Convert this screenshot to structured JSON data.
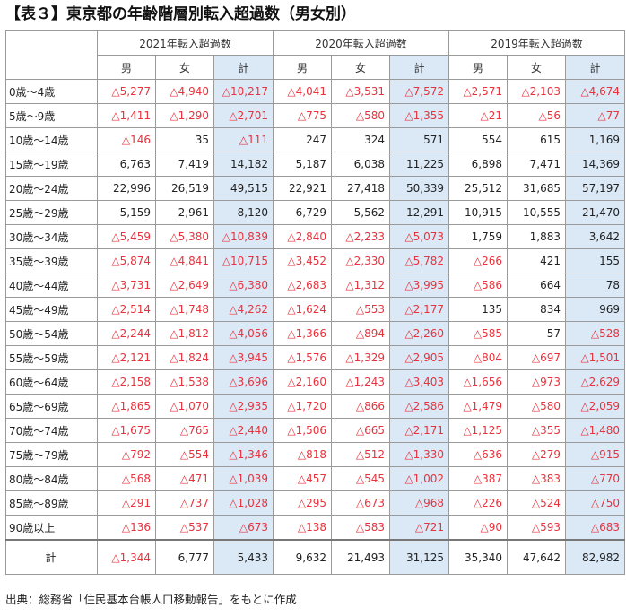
{
  "title": "【表３】東京都の年齢階層別転入超過数（男女別）",
  "header": {
    "years": [
      "2021年転入超過数",
      "2020年転入超過数",
      "2019年転入超過数"
    ],
    "sub": [
      "男",
      "女",
      "計"
    ]
  },
  "rows": [
    {
      "age": "0歳～4歳",
      "cells": [
        "△5,277",
        "△4,940",
        "△10,217",
        "△4,041",
        "△3,531",
        "△7,572",
        "△2,571",
        "△2,103",
        "△4,674"
      ]
    },
    {
      "age": "5歳～9歳",
      "cells": [
        "△1,411",
        "△1,290",
        "△2,701",
        "△775",
        "△580",
        "△1,355",
        "△21",
        "△56",
        "△77"
      ]
    },
    {
      "age": "10歳～14歳",
      "cells": [
        "△146",
        "35",
        "△111",
        "247",
        "324",
        "571",
        "554",
        "615",
        "1,169"
      ]
    },
    {
      "age": "15歳～19歳",
      "cells": [
        "6,763",
        "7,419",
        "14,182",
        "5,187",
        "6,038",
        "11,225",
        "6,898",
        "7,471",
        "14,369"
      ]
    },
    {
      "age": "20歳～24歳",
      "cells": [
        "22,996",
        "26,519",
        "49,515",
        "22,921",
        "27,418",
        "50,339",
        "25,512",
        "31,685",
        "57,197"
      ]
    },
    {
      "age": "25歳～29歳",
      "cells": [
        "5,159",
        "2,961",
        "8,120",
        "6,729",
        "5,562",
        "12,291",
        "10,915",
        "10,555",
        "21,470"
      ]
    },
    {
      "age": "30歳～34歳",
      "cells": [
        "△5,459",
        "△5,380",
        "△10,839",
        "△2,840",
        "△2,233",
        "△5,073",
        "1,759",
        "1,883",
        "3,642"
      ]
    },
    {
      "age": "35歳～39歳",
      "cells": [
        "△5,874",
        "△4,841",
        "△10,715",
        "△3,452",
        "△2,330",
        "△5,782",
        "△266",
        "421",
        "155"
      ]
    },
    {
      "age": "40歳～44歳",
      "cells": [
        "△3,731",
        "△2,649",
        "△6,380",
        "△2,683",
        "△1,312",
        "△3,995",
        "△586",
        "664",
        "78"
      ]
    },
    {
      "age": "45歳～49歳",
      "cells": [
        "△2,514",
        "△1,748",
        "△4,262",
        "△1,624",
        "△553",
        "△2,177",
        "135",
        "834",
        "969"
      ]
    },
    {
      "age": "50歳～54歳",
      "cells": [
        "△2,244",
        "△1,812",
        "△4,056",
        "△1,366",
        "△894",
        "△2,260",
        "△585",
        "57",
        "△528"
      ]
    },
    {
      "age": "55歳～59歳",
      "cells": [
        "△2,121",
        "△1,824",
        "△3,945",
        "△1,576",
        "△1,329",
        "△2,905",
        "△804",
        "△697",
        "△1,501"
      ]
    },
    {
      "age": "60歳～64歳",
      "cells": [
        "△2,158",
        "△1,538",
        "△3,696",
        "△2,160",
        "△1,243",
        "△3,403",
        "△1,656",
        "△973",
        "△2,629"
      ]
    },
    {
      "age": "65歳～69歳",
      "cells": [
        "△1,865",
        "△1,070",
        "△2,935",
        "△1,720",
        "△866",
        "△2,586",
        "△1,479",
        "△580",
        "△2,059"
      ]
    },
    {
      "age": "70歳～74歳",
      "cells": [
        "△1,675",
        "△765",
        "△2,440",
        "△1,506",
        "△665",
        "△2,171",
        "△1,125",
        "△355",
        "△1,480"
      ]
    },
    {
      "age": "75歳～79歳",
      "cells": [
        "△792",
        "△554",
        "△1,346",
        "△818",
        "△512",
        "△1,330",
        "△636",
        "△279",
        "△915"
      ]
    },
    {
      "age": "80歳～84歳",
      "cells": [
        "△568",
        "△471",
        "△1,039",
        "△457",
        "△545",
        "△1,002",
        "△387",
        "△383",
        "△770"
      ]
    },
    {
      "age": "85歳～89歳",
      "cells": [
        "△291",
        "△737",
        "△1,028",
        "△295",
        "△673",
        "△968",
        "△226",
        "△524",
        "△750"
      ]
    },
    {
      "age": "90歳以上",
      "cells": [
        "△136",
        "△537",
        "△673",
        "△138",
        "△583",
        "△721",
        "△90",
        "△593",
        "△683"
      ]
    }
  ],
  "total": {
    "age": "計",
    "cells": [
      "△1,344",
      "6,777",
      "5,433",
      "9,632",
      "21,493",
      "31,125",
      "35,340",
      "47,642",
      "82,982"
    ]
  },
  "source": "出典：総務省「住民基本台帳人口移動報告」をもとに作成"
}
